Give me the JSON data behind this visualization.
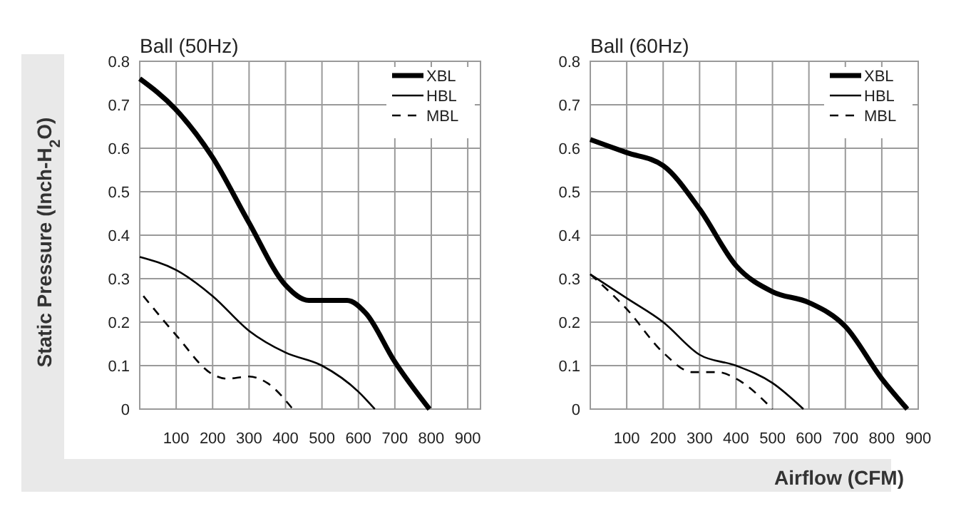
{
  "chart_data": [
    {
      "type": "line",
      "title": "Ball (50Hz)",
      "ylabel": "Static Pressure (Inch-H$_{2}$O)",
      "xlim": [
        0,
        935
      ],
      "xticks": [
        100,
        200,
        300,
        400,
        500,
        600,
        700,
        800,
        900
      ],
      "ylim": [
        0,
        0.8
      ],
      "yticks": [
        0,
        0.1,
        0.2,
        0.3,
        0.4,
        0.5,
        0.6,
        0.7,
        0.8
      ],
      "grid": true,
      "legend": "top right",
      "marker": "none",
      "series": [
        {
          "name": "XBL",
          "color": "#000000",
          "line_style": "solid",
          "x": [
            0,
            98,
            199,
            299,
            400,
            464,
            569,
            621,
            699,
            795
          ],
          "values": [
            0.76,
            0.69,
            0.58,
            0.43,
            0.285,
            0.25,
            0.25,
            0.22,
            0.11,
            0
          ]
        },
        {
          "name": "HBL",
          "color": "#000000",
          "line_style": "solid",
          "x": [
            0,
            100,
            200,
            300,
            400,
            500,
            600,
            645
          ],
          "values": [
            0.35,
            0.32,
            0.26,
            0.18,
            0.13,
            0.1,
            0.04,
            0
          ]
        },
        {
          "name": "MBL",
          "color": "#000000",
          "line_style": "dashed",
          "x": [
            10,
            100,
            200,
            240,
            300,
            350,
            420
          ],
          "values": [
            0.26,
            0.17,
            0.08,
            0.07,
            0.075,
            0.06,
            0
          ]
        }
      ]
    },
    {
      "type": "line",
      "title": "Ball (60Hz)",
      "xlabel": "Airflow (CFM)",
      "xlim": [
        0,
        900
      ],
      "xticks": [
        100,
        200,
        300,
        400,
        500,
        600,
        700,
        800,
        900
      ],
      "ylim": [
        0,
        0.8
      ],
      "yticks": [
        0,
        0.1,
        0.2,
        0.3,
        0.4,
        0.5,
        0.6,
        0.7,
        0.8
      ],
      "grid": true,
      "legend": "top right",
      "marker": "none",
      "series": [
        {
          "name": "XBL",
          "color": "#000000",
          "line_style": "solid",
          "x": [
            0,
            100,
            200,
            300,
            400,
            500,
            600,
            700,
            800,
            870
          ],
          "values": [
            0.62,
            0.59,
            0.56,
            0.46,
            0.33,
            0.27,
            0.245,
            0.19,
            0.07,
            0
          ]
        },
        {
          "name": "HBL",
          "color": "#000000",
          "line_style": "solid",
          "x": [
            0,
            100,
            200,
            300,
            400,
            500,
            585
          ],
          "values": [
            0.31,
            0.255,
            0.2,
            0.125,
            0.1,
            0.06,
            0
          ]
        },
        {
          "name": "MBL",
          "color": "#000000",
          "line_style": "dashed",
          "x": [
            0,
            100,
            200,
            280,
            350,
            400,
            500
          ],
          "values": [
            0.31,
            0.23,
            0.13,
            0.085,
            0.085,
            0.07,
            0
          ]
        }
      ]
    }
  ]
}
